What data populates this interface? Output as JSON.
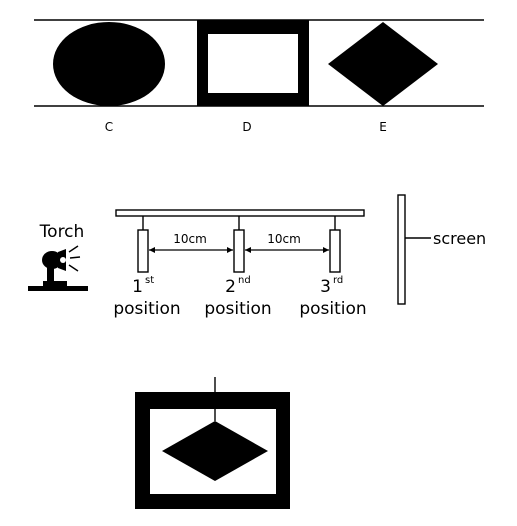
{
  "shapes_row": {
    "labels": [
      "C",
      "D",
      "E"
    ]
  },
  "apparatus": {
    "torch_label": "Torch",
    "screen_label": "screen",
    "distance_1": "10cm",
    "distance_2": "10cm",
    "positions": [
      {
        "number": "1",
        "suffix": "st",
        "word": "position"
      },
      {
        "number": "2",
        "suffix": "nd",
        "word": "position"
      },
      {
        "number": "3",
        "suffix": "rd",
        "word": "position"
      }
    ]
  }
}
